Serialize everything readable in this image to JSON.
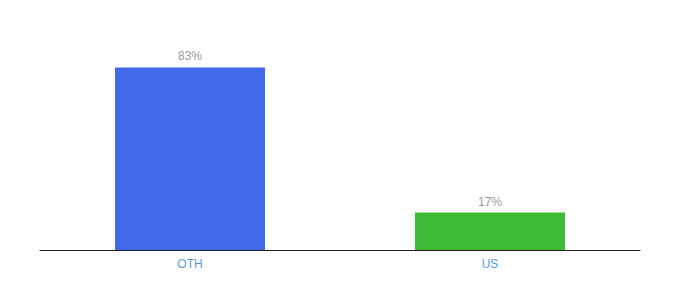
{
  "chart_data": {
    "type": "bar",
    "categories": [
      "OTH",
      "US"
    ],
    "values": [
      83,
      17
    ],
    "value_labels": [
      "83%",
      "17%"
    ],
    "colors": [
      "#4169e8",
      "#3dbb35"
    ],
    "ylim": [
      0,
      100
    ],
    "data_labels": true,
    "tick_labels": "x",
    "grid": false
  }
}
